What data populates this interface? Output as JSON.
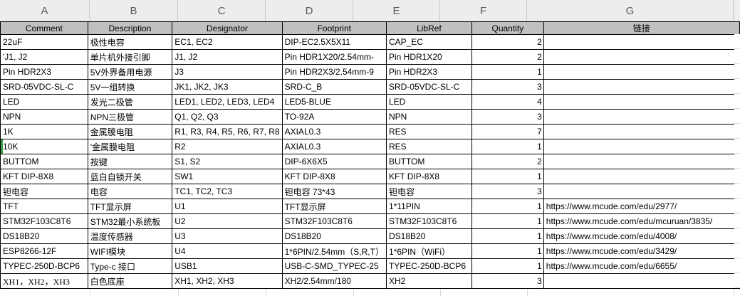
{
  "sheet": {
    "column_letters": [
      "A",
      "B",
      "C",
      "D",
      "E",
      "F",
      "G"
    ],
    "headers": [
      "Comment",
      "Description",
      "Designator",
      "Footprint",
      "LibRef",
      "Quantity",
      "链接"
    ],
    "rows": [
      {
        "comment": "22uF",
        "description": "极性电容",
        "designator": "EC1, EC2",
        "footprint": "DIP-EC2.5X5X11",
        "libref": "CAP_EC",
        "quantity": "2",
        "link": ""
      },
      {
        "comment": "'J1, J2",
        "description": "单片机外接引脚",
        "designator": "J1, J2",
        "footprint": "Pin HDR1X20/2.54mm-",
        "libref": "Pin HDR1X20",
        "quantity": "2",
        "link": ""
      },
      {
        "comment": "Pin HDR2X3",
        "description": "5V外界备用电源",
        "designator": "J3",
        "footprint": "Pin HDR2X3/2.54mm-9",
        "libref": "Pin HDR2X3",
        "quantity": "1",
        "link": ""
      },
      {
        "comment": "SRD-05VDC-SL-C",
        "description": "5V一组转换",
        "designator": "JK1, JK2, JK3",
        "footprint": "SRD-C_B",
        "libref": "SRD-05VDC-SL-C",
        "quantity": "3",
        "link": ""
      },
      {
        "comment": "LED",
        "description": "发光二极管",
        "designator": "LED1, LED2, LED3, LED4",
        "footprint": "LED5-BLUE",
        "libref": "LED",
        "quantity": "4",
        "link": ""
      },
      {
        "comment": "NPN",
        "description": "NPN三极管",
        "designator": "Q1, Q2, Q3",
        "footprint": "TO-92A",
        "libref": "NPN",
        "quantity": "3",
        "link": ""
      },
      {
        "comment": "1K",
        "description": "金属膜电阻",
        "designator": "R1, R3, R4, R5, R6, R7, R8",
        "footprint": "AXIAL0.3",
        "libref": "RES",
        "quantity": "7",
        "link": ""
      },
      {
        "comment": "10K",
        "description": "'金属膜电阻",
        "designator": "R2",
        "footprint": "AXIAL0.3",
        "libref": "RES",
        "quantity": "1",
        "link": "",
        "selected": true
      },
      {
        "comment": "BUTTOM",
        "description": "按键",
        "designator": "S1, S2",
        "footprint": "DIP-6X6X5",
        "libref": "BUTTOM",
        "quantity": "2",
        "link": ""
      },
      {
        "comment": "KFT DIP-8X8",
        "description": "蓝白自锁开关",
        "designator": "SW1",
        "footprint": "KFT DIP-8X8",
        "libref": "KFT DIP-8X8",
        "quantity": "1",
        "link": ""
      },
      {
        "comment": "钽电容",
        "description": "电容",
        "designator": "TC1, TC2, TC3",
        "footprint": "钽电容 73*43",
        "libref": "钽电容",
        "quantity": "3",
        "link": ""
      },
      {
        "comment": "TFT",
        "description": "TFT显示屏",
        "designator": "U1",
        "footprint": "TFT显示屏",
        "libref": "1*11PIN",
        "quantity": "1",
        "link": "https://www.mcude.com/edu/2977/"
      },
      {
        "comment": "STM32F103C8T6",
        "description": "STM32最小系统板",
        "designator": "U2",
        "footprint": "STM32F103C8T6",
        "libref": "STM32F103C8T6",
        "quantity": "1",
        "link": "https://www.mcude.com/edu/mcuruan/3835/"
      },
      {
        "comment": "DS18B20",
        "description": "温度传感器",
        "designator": "U3",
        "footprint": "DS18B20",
        "libref": "DS18B20",
        "quantity": "1",
        "link": "https://www.mcude.com/edu/4008/"
      },
      {
        "comment": "ESP8266-12F",
        "description": "WIFI模块",
        "designator": "U4",
        "footprint": "1*6PIN/2.54mm（S,R,T）",
        "libref": "1*6PIN（WiFi）",
        "quantity": "1",
        "link": "https://www.mcude.com/edu/3429/"
      },
      {
        "comment": "TYPEC-250D-BCP6",
        "description": "Type-c 接口",
        "designator": "USB1",
        "footprint": "USB-C-SMD_TYPEC-25",
        "libref": "TYPEC-250D-BCP6",
        "quantity": "1",
        "link": "https://www.mcude.com/edu/6655/"
      },
      {
        "comment": "XH1，XH2，XH3",
        "description": "白色底座",
        "designator": "XH1, XH2, XH3",
        "footprint": "XH2/2.54mm/180",
        "libref": "XH2",
        "quantity": "3",
        "link": "",
        "comment_style": "serif"
      }
    ],
    "colors": {
      "header_bg": "#c0c0c0",
      "letter_row_bg": "#ededed",
      "letter_text": "#595959",
      "grid_border": "#000000",
      "selection_green": "#3f9d45",
      "faint_gridline": "#d9d9d9"
    }
  }
}
